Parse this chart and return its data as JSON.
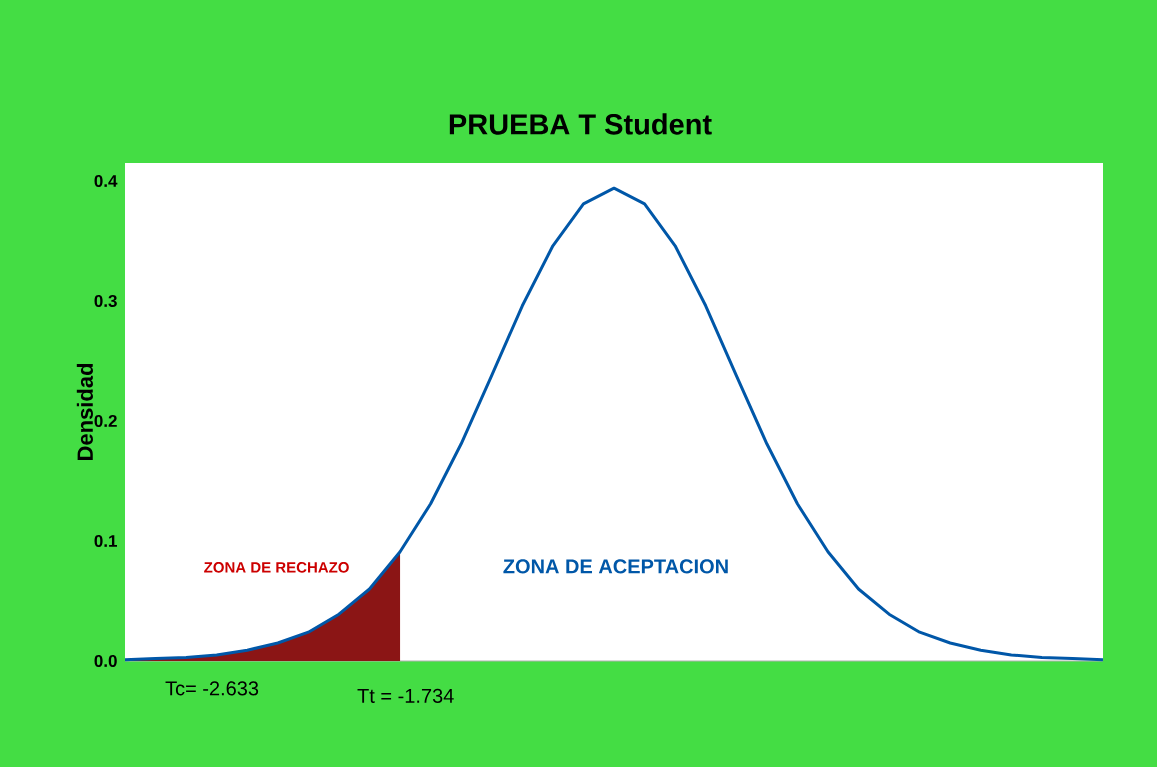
{
  "chart_data": {
    "type": "line",
    "title": "PRUEBA T Student",
    "ylabel": "Densidad",
    "categories": [
      null,
      null,
      null,
      null,
      null,
      null,
      null,
      null,
      null,
      null,
      null,
      null,
      null,
      null,
      null,
      null,
      null,
      null,
      null,
      null,
      null,
      null,
      null,
      null,
      null,
      null,
      null,
      null,
      null,
      null,
      null,
      null,
      null
    ],
    "ylim": [
      0,
      0.415
    ],
    "yticks": [
      {
        "value": 0,
        "label": "0.0"
      },
      {
        "value": 0.1,
        "label": "0.1"
      },
      {
        "value": 0.2,
        "label": "0.2"
      },
      {
        "value": 0.3,
        "label": "0.3"
      },
      {
        "value": 0.4,
        "label": "0.4"
      }
    ],
    "tick_labels": "y",
    "series": [
      {
        "color": "#0057a8",
        "values": [
          0.001,
          0.002,
          0.003,
          0.005,
          0.009,
          0.015,
          0.024,
          0.039,
          0.06,
          0.091,
          0.131,
          0.181,
          0.238,
          0.296,
          0.346,
          0.381,
          0.394,
          0.381,
          0.346,
          0.296,
          0.238,
          0.181,
          0.131,
          0.091,
          0.06,
          0.039,
          0.024,
          0.015,
          0.009,
          0.005,
          0.003,
          0.002,
          0.001
        ],
        "lower": [
          0,
          0,
          0,
          0,
          0,
          0,
          0,
          0,
          0,
          0,
          null,
          null,
          null,
          null,
          null,
          null,
          null,
          null,
          null,
          null,
          null,
          null,
          null,
          null,
          null,
          null,
          null,
          null,
          null,
          null,
          null,
          null,
          null
        ],
        "upper": [
          0.001,
          0.002,
          0.003,
          0.005,
          0.009,
          0.015,
          0.024,
          0.039,
          0.06,
          0.091,
          null,
          null,
          null,
          null,
          null,
          null,
          null,
          null,
          null,
          null,
          null,
          null,
          null,
          null,
          null,
          null,
          null,
          null,
          null,
          null,
          null,
          null,
          null
        ]
      }
    ],
    "annotations": [
      "ZONA DE RECHAZO",
      "ZONA DE ACEPTACION",
      "Tc= -2.633",
      "Tt = -1.734"
    ]
  }
}
